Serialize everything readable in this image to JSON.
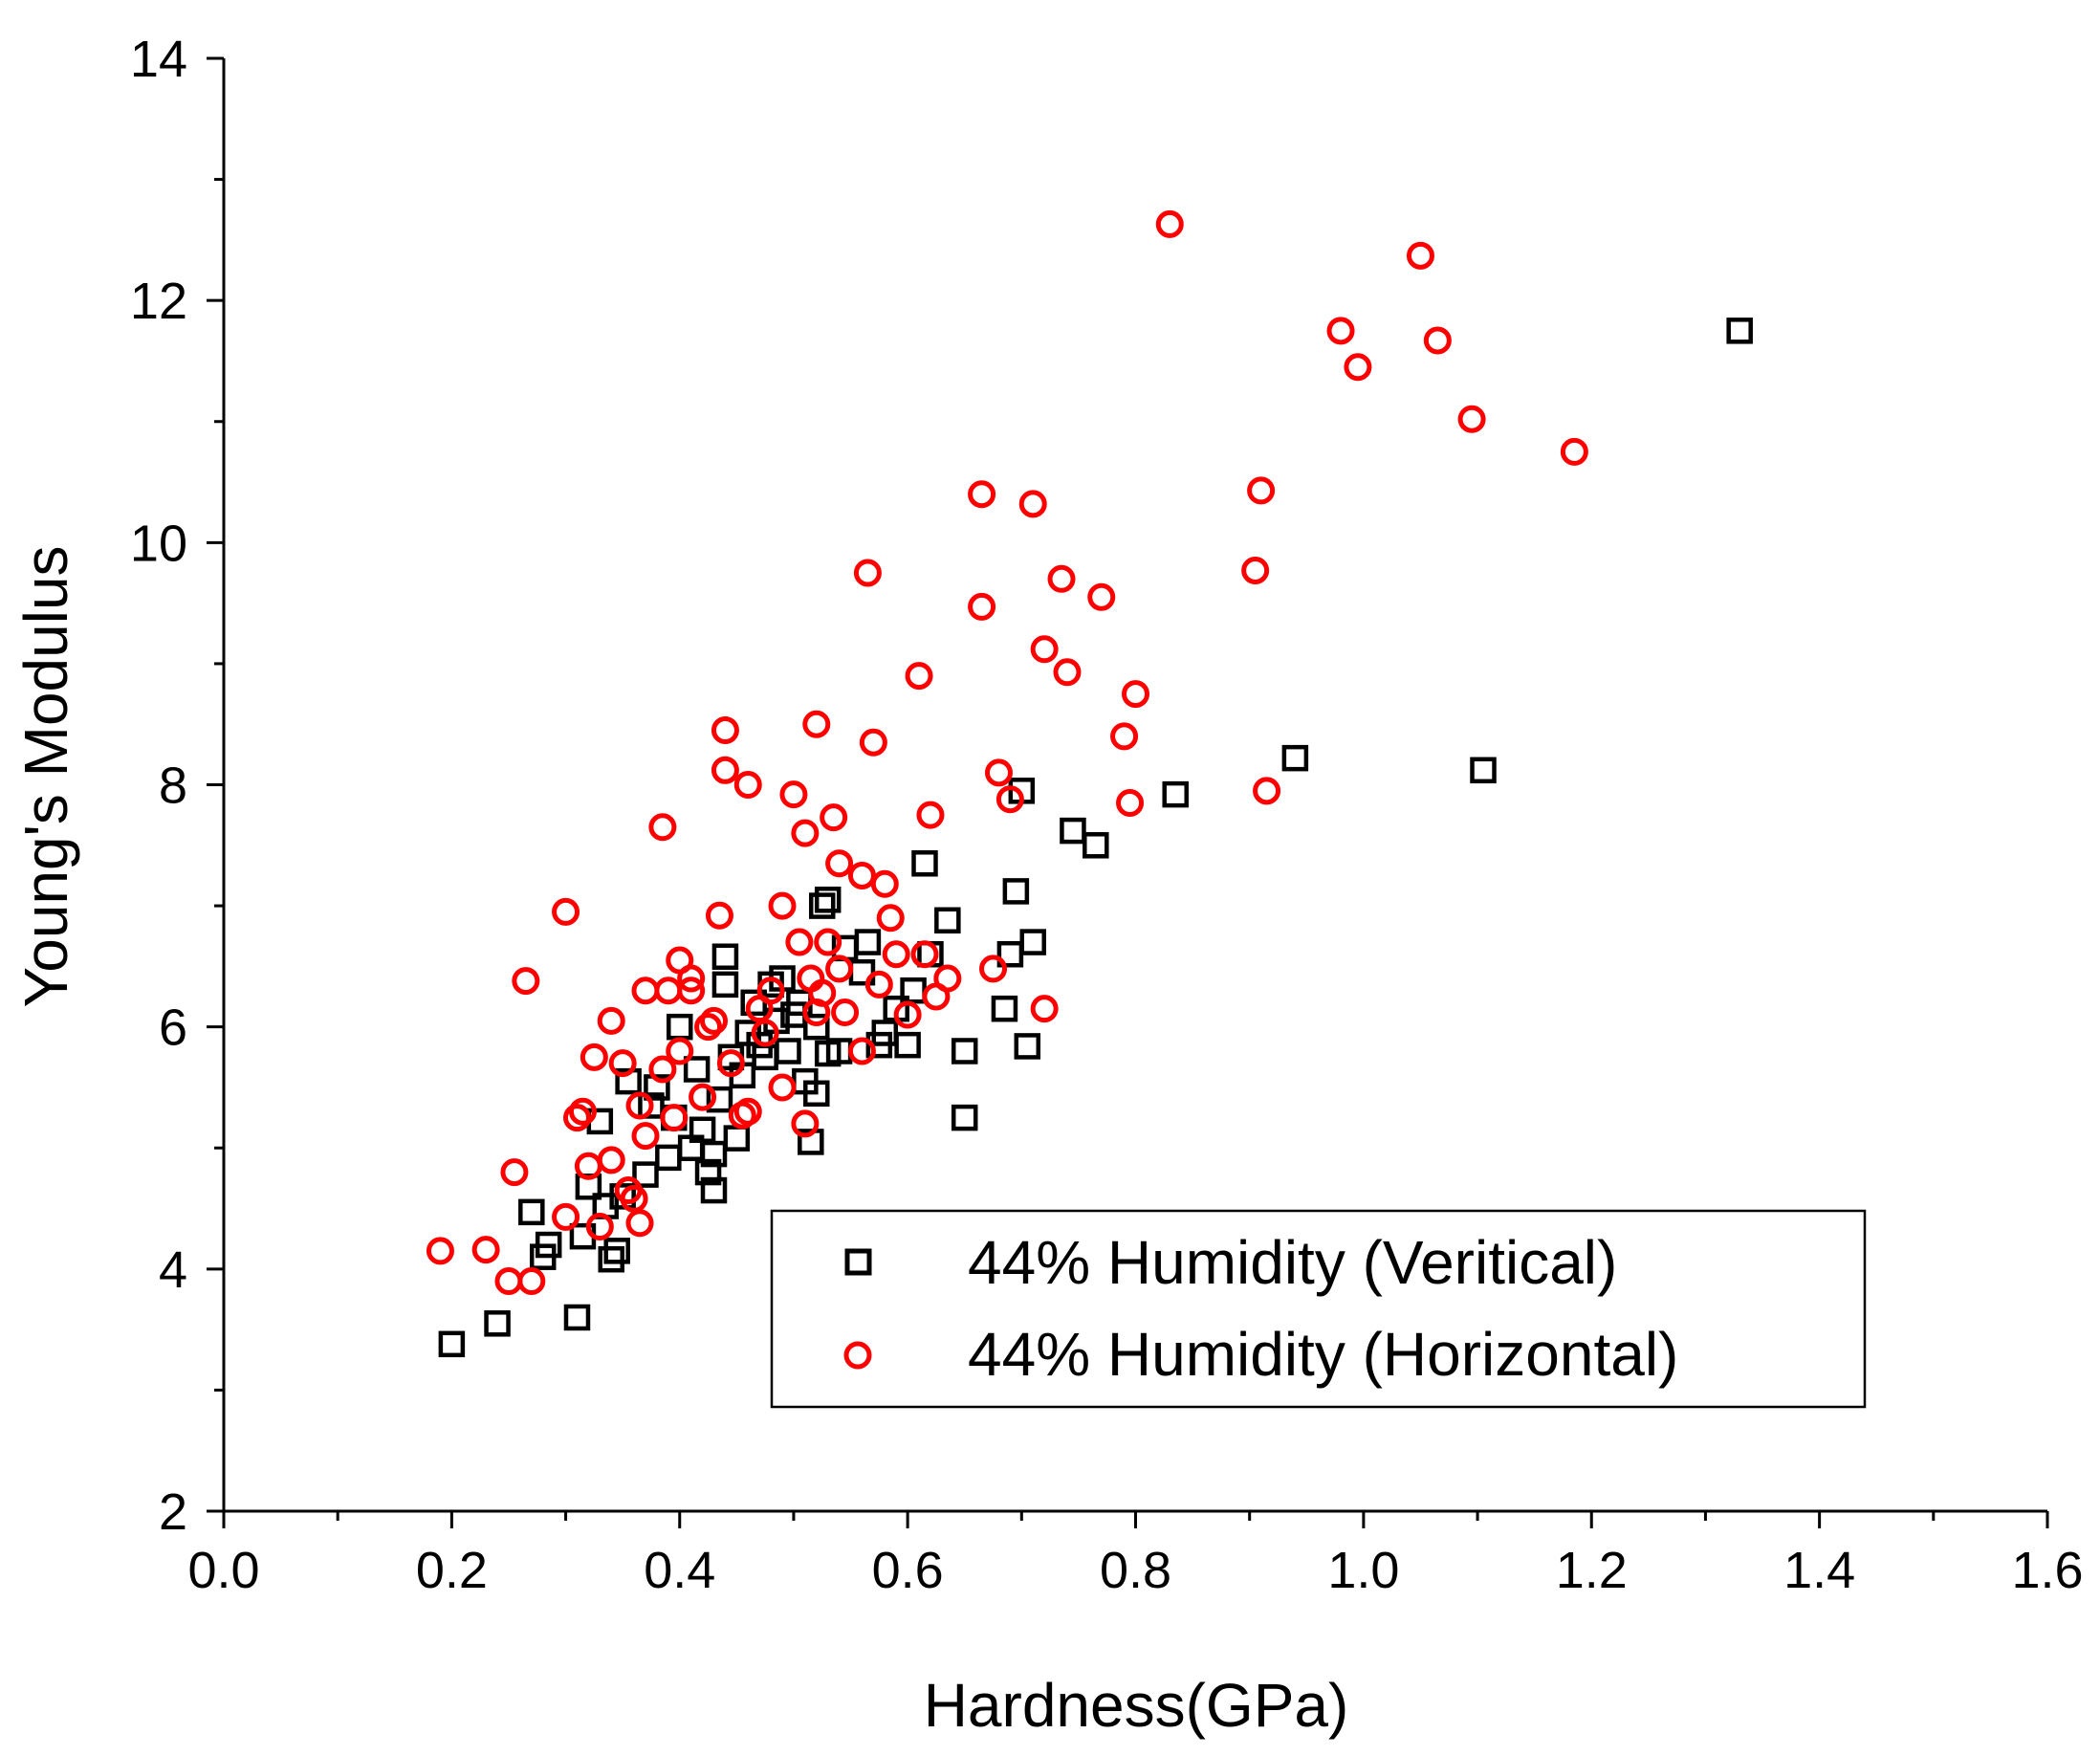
{
  "chart_data": {
    "type": "scatter",
    "title": "",
    "xlabel": "Hardness(GPa)",
    "ylabel": "Young's Modulus",
    "xlim": [
      0.0,
      1.6
    ],
    "ylim": [
      2,
      14
    ],
    "xticks": [
      0.0,
      0.2,
      0.4,
      0.6,
      0.8,
      1.0,
      1.2,
      1.4,
      1.6
    ],
    "xtick_labels": [
      "0.0",
      "0.2",
      "0.4",
      "0.6",
      "0.8",
      "1.0",
      "1.2",
      "1.4",
      "1.6"
    ],
    "yticks": [
      2,
      4,
      6,
      8,
      10,
      12,
      14
    ],
    "ytick_labels": [
      "2",
      "4",
      "6",
      "8",
      "10",
      "12",
      "14"
    ],
    "grid": false,
    "legend_position": "lower-right",
    "series": [
      {
        "name": "44% Humidity (Veritical)",
        "marker": "square",
        "color": "#000000",
        "points": [
          [
            0.2,
            3.38
          ],
          [
            0.24,
            3.55
          ],
          [
            0.27,
            4.47
          ],
          [
            0.28,
            4.1
          ],
          [
            0.285,
            4.2
          ],
          [
            0.31,
            3.6
          ],
          [
            0.315,
            4.27
          ],
          [
            0.32,
            4.68
          ],
          [
            0.33,
            5.22
          ],
          [
            0.335,
            4.52
          ],
          [
            0.34,
            4.08
          ],
          [
            0.345,
            4.15
          ],
          [
            0.35,
            4.6
          ],
          [
            0.355,
            5.55
          ],
          [
            0.37,
            4.78
          ],
          [
            0.375,
            5.35
          ],
          [
            0.38,
            5.5
          ],
          [
            0.39,
            4.92
          ],
          [
            0.395,
            5.25
          ],
          [
            0.4,
            6.0
          ],
          [
            0.41,
            5.0
          ],
          [
            0.415,
            5.65
          ],
          [
            0.42,
            5.15
          ],
          [
            0.425,
            4.8
          ],
          [
            0.43,
            4.65
          ],
          [
            0.43,
            4.95
          ],
          [
            0.435,
            5.4
          ],
          [
            0.44,
            6.35
          ],
          [
            0.44,
            6.58
          ],
          [
            0.445,
            5.75
          ],
          [
            0.45,
            5.08
          ],
          [
            0.455,
            5.6
          ],
          [
            0.46,
            5.95
          ],
          [
            0.465,
            6.2
          ],
          [
            0.47,
            5.85
          ],
          [
            0.475,
            5.75
          ],
          [
            0.48,
            6.35
          ],
          [
            0.485,
            6.05
          ],
          [
            0.49,
            6.4
          ],
          [
            0.495,
            5.8
          ],
          [
            0.5,
            6.1
          ],
          [
            0.505,
            6.2
          ],
          [
            0.51,
            5.55
          ],
          [
            0.515,
            5.05
          ],
          [
            0.52,
            5.45
          ],
          [
            0.52,
            6.0
          ],
          [
            0.525,
            7.0
          ],
          [
            0.53,
            5.78
          ],
          [
            0.53,
            7.05
          ],
          [
            0.54,
            5.8
          ],
          [
            0.545,
            6.65
          ],
          [
            0.56,
            6.45
          ],
          [
            0.565,
            6.7
          ],
          [
            0.575,
            5.85
          ],
          [
            0.58,
            5.95
          ],
          [
            0.59,
            6.15
          ],
          [
            0.6,
            5.85
          ],
          [
            0.605,
            6.3
          ],
          [
            0.615,
            7.35
          ],
          [
            0.62,
            6.6
          ],
          [
            0.635,
            6.88
          ],
          [
            0.65,
            5.25
          ],
          [
            0.65,
            5.8
          ],
          [
            0.685,
            6.15
          ],
          [
            0.69,
            6.6
          ],
          [
            0.695,
            7.12
          ],
          [
            0.7,
            7.95
          ],
          [
            0.705,
            5.84
          ],
          [
            0.71,
            6.7
          ],
          [
            0.745,
            7.62
          ],
          [
            0.765,
            7.5
          ],
          [
            0.835,
            7.92
          ],
          [
            0.94,
            8.22
          ],
          [
            1.105,
            8.12
          ],
          [
            1.33,
            11.75
          ]
        ]
      },
      {
        "name": "44% Humidity (Horizontal)",
        "marker": "circle",
        "color": "#ff0000",
        "points": [
          [
            0.19,
            4.15
          ],
          [
            0.23,
            4.16
          ],
          [
            0.25,
            3.9
          ],
          [
            0.255,
            4.8
          ],
          [
            0.265,
            6.38
          ],
          [
            0.27,
            3.9
          ],
          [
            0.3,
            6.95
          ],
          [
            0.3,
            4.43
          ],
          [
            0.31,
            5.25
          ],
          [
            0.315,
            5.3
          ],
          [
            0.32,
            4.85
          ],
          [
            0.325,
            5.75
          ],
          [
            0.33,
            4.35
          ],
          [
            0.34,
            4.9
          ],
          [
            0.34,
            6.05
          ],
          [
            0.35,
            5.7
          ],
          [
            0.355,
            4.65
          ],
          [
            0.36,
            4.58
          ],
          [
            0.365,
            4.38
          ],
          [
            0.365,
            5.35
          ],
          [
            0.37,
            5.1
          ],
          [
            0.37,
            6.3
          ],
          [
            0.385,
            5.65
          ],
          [
            0.385,
            7.65
          ],
          [
            0.39,
            6.3
          ],
          [
            0.395,
            5.25
          ],
          [
            0.4,
            5.8
          ],
          [
            0.4,
            6.55
          ],
          [
            0.41,
            6.3
          ],
          [
            0.41,
            6.4
          ],
          [
            0.42,
            5.42
          ],
          [
            0.425,
            6.0
          ],
          [
            0.43,
            6.05
          ],
          [
            0.435,
            6.92
          ],
          [
            0.44,
            8.12
          ],
          [
            0.44,
            8.45
          ],
          [
            0.445,
            5.7
          ],
          [
            0.455,
            5.27
          ],
          [
            0.46,
            8.0
          ],
          [
            0.46,
            5.3
          ],
          [
            0.47,
            6.15
          ],
          [
            0.475,
            5.95
          ],
          [
            0.48,
            6.3
          ],
          [
            0.49,
            5.5
          ],
          [
            0.49,
            7.0
          ],
          [
            0.5,
            7.92
          ],
          [
            0.505,
            6.7
          ],
          [
            0.51,
            5.2
          ],
          [
            0.51,
            7.6
          ],
          [
            0.515,
            6.4
          ],
          [
            0.52,
            8.5
          ],
          [
            0.52,
            6.12
          ],
          [
            0.525,
            6.28
          ],
          [
            0.53,
            6.7
          ],
          [
            0.535,
            7.73
          ],
          [
            0.54,
            7.35
          ],
          [
            0.54,
            6.48
          ],
          [
            0.545,
            6.12
          ],
          [
            0.56,
            5.8
          ],
          [
            0.56,
            7.25
          ],
          [
            0.565,
            9.75
          ],
          [
            0.57,
            8.35
          ],
          [
            0.575,
            6.35
          ],
          [
            0.58,
            7.18
          ],
          [
            0.585,
            6.9
          ],
          [
            0.59,
            6.6
          ],
          [
            0.6,
            6.1
          ],
          [
            0.61,
            8.9
          ],
          [
            0.615,
            6.6
          ],
          [
            0.62,
            7.75
          ],
          [
            0.625,
            6.25
          ],
          [
            0.635,
            6.4
          ],
          [
            0.665,
            9.47
          ],
          [
            0.665,
            10.4
          ],
          [
            0.675,
            6.48
          ],
          [
            0.68,
            8.1
          ],
          [
            0.69,
            7.88
          ],
          [
            0.71,
            10.32
          ],
          [
            0.72,
            9.12
          ],
          [
            0.72,
            6.15
          ],
          [
            0.735,
            9.7
          ],
          [
            0.74,
            8.93
          ],
          [
            0.77,
            9.55
          ],
          [
            0.79,
            8.4
          ],
          [
            0.795,
            7.85
          ],
          [
            0.8,
            8.75
          ],
          [
            0.83,
            12.63
          ],
          [
            0.905,
            9.77
          ],
          [
            0.91,
            10.43
          ],
          [
            0.915,
            7.95
          ],
          [
            0.98,
            11.75
          ],
          [
            0.995,
            11.45
          ],
          [
            1.05,
            12.37
          ],
          [
            1.065,
            11.67
          ],
          [
            1.095,
            11.02
          ],
          [
            1.185,
            10.75
          ]
        ]
      }
    ]
  }
}
